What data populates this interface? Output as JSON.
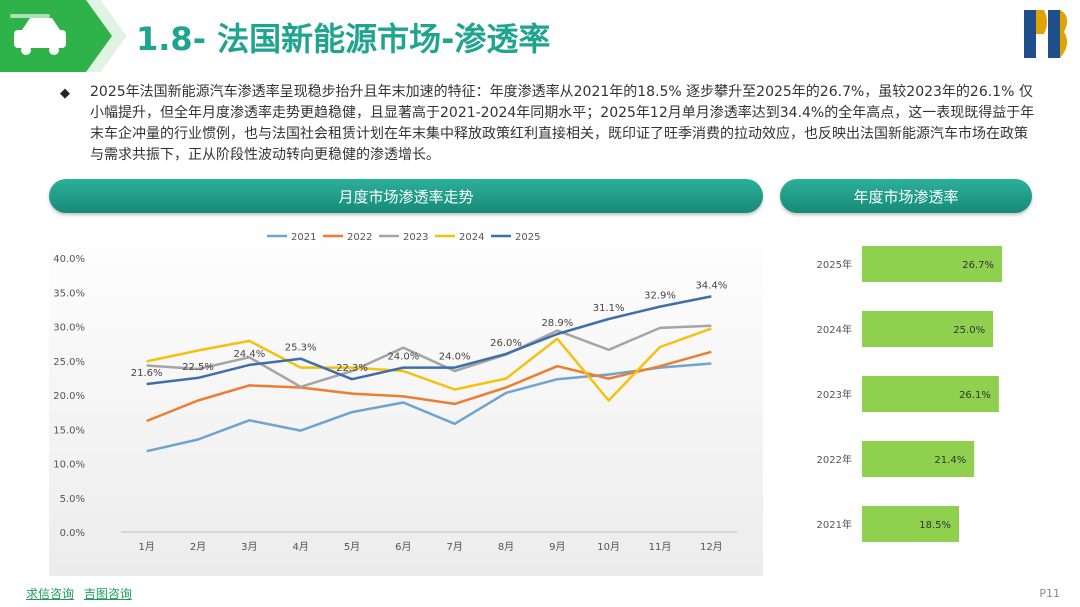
{
  "header": {
    "title": "1.8- 法国新能源市场-渗透率",
    "car_icon": "car-icon",
    "logo_icon": "db-logo-icon"
  },
  "summary": {
    "bullet_icon": "diamond-bullet-icon",
    "text": "2025年法国新能源汽车渗透率呈现稳步抬升且年末加速的特征：年度渗透率从2021年的18.5% 逐步攀升至2025年的26.7%，虽较2023年的26.1% 仅小幅提升，但全年月度渗透率走势更趋稳健，且显著高于2021-2024年同期水平；2025年12月单月渗透率达到34.4%的全年高点，这一表现既得益于年末车企冲量的行业惯例，也与法国社会租赁计划在年末集中释放政策红利直接相关，既印证了旺季消费的拉动效应，也反映出法国新能源汽车市场在政策与需求共振下，正从阶段性波动转向更稳健的渗透增长。"
  },
  "sections": {
    "monthly_label": "月度市场渗透率走势",
    "annual_label": "年度市场渗透率"
  },
  "footer": {
    "link1": "求信咨询",
    "link2": "吉图咨询",
    "page": "P11"
  },
  "colors": {
    "accent": "#1fa48f",
    "bar": "#8fd14f"
  },
  "chart_data": [
    {
      "type": "line",
      "categories": [
        "1月",
        "2月",
        "3月",
        "4月",
        "5月",
        "6月",
        "7月",
        "8月",
        "9月",
        "10月",
        "11月",
        "12月"
      ],
      "ylim": [
        0,
        40
      ],
      "yticks": [
        "0.0%",
        "5.0%",
        "10.0%",
        "15.0%",
        "20.0%",
        "25.0%",
        "30.0%",
        "35.0%",
        "40.0%"
      ],
      "grid": false,
      "legend": "top",
      "series": [
        {
          "name": "2021",
          "color": "#6fa4cf",
          "values": [
            11.8,
            13.5,
            16.3,
            14.8,
            17.5,
            18.9,
            15.8,
            20.3,
            22.3,
            23.0,
            24.0,
            24.6
          ]
        },
        {
          "name": "2022",
          "color": "#ed7d31",
          "values": [
            16.2,
            19.2,
            21.4,
            21.1,
            20.2,
            19.8,
            18.7,
            21.1,
            24.2,
            22.4,
            24.2,
            26.3
          ]
        },
        {
          "name": "2023",
          "color": "#a5a5a5",
          "values": [
            24.3,
            23.8,
            25.5,
            21.2,
            23.5,
            26.9,
            23.5,
            25.9,
            29.4,
            26.6,
            29.8,
            30.1
          ]
        },
        {
          "name": "2024",
          "color": "#f4c20d",
          "values": [
            24.9,
            26.5,
            27.9,
            24.0,
            24.0,
            23.5,
            20.8,
            22.4,
            28.2,
            19.2,
            27.0,
            29.7
          ]
        },
        {
          "name": "2025",
          "color": "#3f6ea8",
          "values": [
            21.6,
            22.5,
            24.4,
            25.3,
            22.3,
            24.0,
            24.0,
            26.0,
            28.9,
            31.1,
            32.9,
            34.4
          ]
        }
      ],
      "data_labels": [
        "21.6%",
        "22.5%",
        "24.4%",
        "25.3%",
        "22.3%",
        "24.0%",
        "24.0%",
        "26.0%",
        "28.9%",
        "31.1%",
        "32.9%",
        "34.4%"
      ]
    },
    {
      "type": "bar",
      "orientation": "horizontal",
      "categories": [
        "2025年",
        "2024年",
        "2023年",
        "2022年",
        "2021年"
      ],
      "values": [
        26.7,
        25.0,
        26.1,
        21.4,
        18.5
      ],
      "labels": [
        "26.7%",
        "25.0%",
        "26.1%",
        "21.4%",
        "18.5%"
      ]
    }
  ]
}
